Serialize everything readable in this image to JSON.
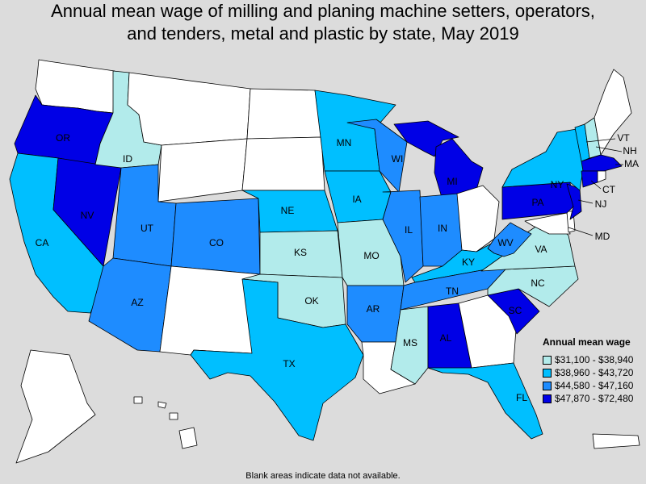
{
  "title": {
    "line1": "Annual mean wage of milling and planing machine setters, operators,",
    "line2": "and tenders, metal and plastic by state, May 2019"
  },
  "legend": {
    "title": "Annual mean wage",
    "items": [
      {
        "label": "$31,100 - $38,940",
        "color": "#b2ebeb"
      },
      {
        "label": "$38,960 - $43,720",
        "color": "#00bfff"
      },
      {
        "label": "$44,580 - $47,160",
        "color": "#1e8cff"
      },
      {
        "label": "$47,870 - $72,480",
        "color": "#0000e6"
      }
    ]
  },
  "no_data_color": "#ffffff",
  "footnote": "Blank areas indicate data not available.",
  "states": [
    {
      "abbr": "WA",
      "label": "",
      "wage_class": null
    },
    {
      "abbr": "OR",
      "label": "OR",
      "wage_class": 3
    },
    {
      "abbr": "CA",
      "label": "CA",
      "wage_class": 1
    },
    {
      "abbr": "NV",
      "label": "NV",
      "wage_class": 3
    },
    {
      "abbr": "ID",
      "label": "ID",
      "wage_class": 0
    },
    {
      "abbr": "MT",
      "label": "",
      "wage_class": null
    },
    {
      "abbr": "WY",
      "label": "",
      "wage_class": null
    },
    {
      "abbr": "UT",
      "label": "UT",
      "wage_class": 2
    },
    {
      "abbr": "AZ",
      "label": "AZ",
      "wage_class": 2
    },
    {
      "abbr": "CO",
      "label": "CO",
      "wage_class": 2
    },
    {
      "abbr": "NM",
      "label": "",
      "wage_class": null
    },
    {
      "abbr": "ND",
      "label": "",
      "wage_class": null
    },
    {
      "abbr": "SD",
      "label": "",
      "wage_class": null
    },
    {
      "abbr": "NE",
      "label": "NE",
      "wage_class": 1
    },
    {
      "abbr": "KS",
      "label": "KS",
      "wage_class": 0
    },
    {
      "abbr": "OK",
      "label": "OK",
      "wage_class": 0
    },
    {
      "abbr": "TX",
      "label": "TX",
      "wage_class": 1
    },
    {
      "abbr": "MN",
      "label": "MN",
      "wage_class": 1
    },
    {
      "abbr": "IA",
      "label": "IA",
      "wage_class": 1
    },
    {
      "abbr": "MO",
      "label": "MO",
      "wage_class": 0
    },
    {
      "abbr": "AR",
      "label": "AR",
      "wage_class": 2
    },
    {
      "abbr": "LA",
      "label": "",
      "wage_class": null
    },
    {
      "abbr": "WI",
      "label": "WI",
      "wage_class": 2
    },
    {
      "abbr": "IL",
      "label": "IL",
      "wage_class": 2
    },
    {
      "abbr": "MI",
      "label": "MI",
      "wage_class": 3
    },
    {
      "abbr": "IN",
      "label": "IN",
      "wage_class": 2
    },
    {
      "abbr": "OH",
      "label": "",
      "wage_class": null
    },
    {
      "abbr": "KY",
      "label": "KY",
      "wage_class": 1
    },
    {
      "abbr": "TN",
      "label": "TN",
      "wage_class": 2
    },
    {
      "abbr": "MS",
      "label": "MS",
      "wage_class": 0
    },
    {
      "abbr": "AL",
      "label": "AL",
      "wage_class": 3
    },
    {
      "abbr": "GA",
      "label": "",
      "wage_class": null
    },
    {
      "abbr": "FL",
      "label": "FL",
      "wage_class": 1
    },
    {
      "abbr": "SC",
      "label": "SC",
      "wage_class": 3
    },
    {
      "abbr": "NC",
      "label": "NC",
      "wage_class": 0
    },
    {
      "abbr": "VA",
      "label": "VA",
      "wage_class": 0
    },
    {
      "abbr": "WV",
      "label": "WV",
      "wage_class": 2
    },
    {
      "abbr": "PA",
      "label": "PA",
      "wage_class": 3
    },
    {
      "abbr": "NY",
      "label": "NY",
      "wage_class": 1
    },
    {
      "abbr": "VT",
      "label": "VT",
      "wage_class": 1
    },
    {
      "abbr": "NH",
      "label": "NH",
      "wage_class": 0
    },
    {
      "abbr": "ME",
      "label": "",
      "wage_class": null
    },
    {
      "abbr": "MA",
      "label": "MA",
      "wage_class": 3
    },
    {
      "abbr": "CT",
      "label": "CT",
      "wage_class": 3
    },
    {
      "abbr": "RI",
      "label": "",
      "wage_class": null
    },
    {
      "abbr": "NJ",
      "label": "NJ",
      "wage_class": 3
    },
    {
      "abbr": "MD",
      "label": "MD",
      "wage_class": null
    },
    {
      "abbr": "DE",
      "label": "",
      "wage_class": null
    },
    {
      "abbr": "AK",
      "label": "",
      "wage_class": null
    },
    {
      "abbr": "HI",
      "label": "",
      "wage_class": null
    },
    {
      "abbr": "PR",
      "label": "",
      "wage_class": null
    }
  ]
}
